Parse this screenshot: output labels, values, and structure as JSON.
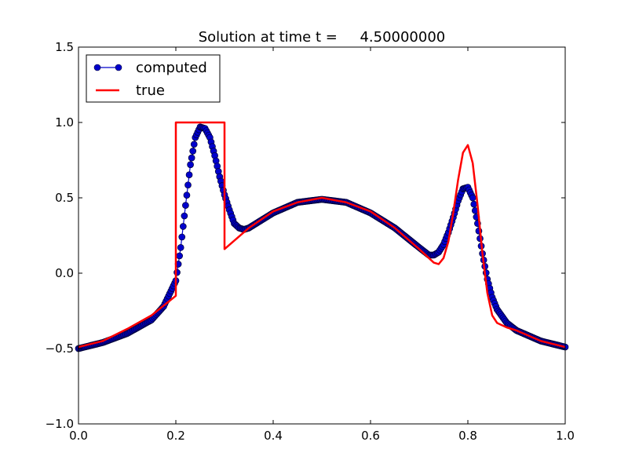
{
  "chart_data": {
    "type": "line",
    "title": "Solution at time t =     4.50000000",
    "xlabel": "",
    "ylabel": "",
    "xlim": [
      0.0,
      1.0
    ],
    "ylim": [
      -1.0,
      1.5
    ],
    "xticks": [
      "0.0",
      "0.2",
      "0.4",
      "0.6",
      "0.8",
      "1.0"
    ],
    "yticks": [
      "−1.0",
      "−0.5",
      "0.0",
      "0.5",
      "1.0",
      "1.5"
    ],
    "xtick_values": [
      0.0,
      0.2,
      0.4,
      0.6,
      0.8,
      1.0
    ],
    "ytick_values": [
      -1.0,
      -0.5,
      0.0,
      0.5,
      1.0,
      1.5
    ],
    "grid": false,
    "legend_position": "top-left",
    "series": [
      {
        "name": "computed",
        "style": "line with circle markers",
        "color": "#0000cc",
        "marker_edge": "#000033",
        "x": [
          0.0,
          0.05,
          0.1,
          0.15,
          0.175,
          0.2,
          0.21,
          0.22,
          0.23,
          0.24,
          0.25,
          0.26,
          0.27,
          0.28,
          0.29,
          0.3,
          0.31,
          0.32,
          0.33,
          0.34,
          0.35,
          0.4,
          0.45,
          0.5,
          0.55,
          0.6,
          0.65,
          0.7,
          0.72,
          0.73,
          0.74,
          0.75,
          0.76,
          0.77,
          0.78,
          0.79,
          0.8,
          0.81,
          0.82,
          0.83,
          0.84,
          0.85,
          0.86,
          0.88,
          0.9,
          0.95,
          1.0
        ],
        "y": [
          -0.5,
          -0.46,
          -0.4,
          -0.31,
          -0.22,
          -0.05,
          0.17,
          0.45,
          0.72,
          0.9,
          0.97,
          0.96,
          0.9,
          0.78,
          0.64,
          0.52,
          0.42,
          0.33,
          0.3,
          0.29,
          0.3,
          0.4,
          0.47,
          0.49,
          0.47,
          0.4,
          0.3,
          0.17,
          0.12,
          0.12,
          0.14,
          0.19,
          0.27,
          0.37,
          0.48,
          0.56,
          0.57,
          0.5,
          0.33,
          0.13,
          -0.04,
          -0.16,
          -0.24,
          -0.33,
          -0.38,
          -0.45,
          -0.49
        ]
      },
      {
        "name": "true",
        "style": "solid line",
        "color": "#ff0000",
        "x": [
          0.0,
          0.05,
          0.1,
          0.15,
          0.2,
          0.2,
          0.3,
          0.3,
          0.35,
          0.4,
          0.45,
          0.5,
          0.55,
          0.6,
          0.65,
          0.7,
          0.73,
          0.74,
          0.75,
          0.76,
          0.77,
          0.78,
          0.79,
          0.8,
          0.81,
          0.82,
          0.83,
          0.84,
          0.85,
          0.86,
          0.88,
          0.9,
          0.95,
          1.0
        ],
        "y": [
          -0.49,
          -0.45,
          -0.37,
          -0.28,
          -0.15,
          1.0,
          1.0,
          0.16,
          0.3,
          0.41,
          0.47,
          0.5,
          0.47,
          0.41,
          0.3,
          0.16,
          0.07,
          0.06,
          0.1,
          0.21,
          0.4,
          0.62,
          0.8,
          0.85,
          0.73,
          0.45,
          0.13,
          -0.13,
          -0.28,
          -0.33,
          -0.36,
          -0.38,
          -0.45,
          -0.49
        ]
      }
    ]
  }
}
